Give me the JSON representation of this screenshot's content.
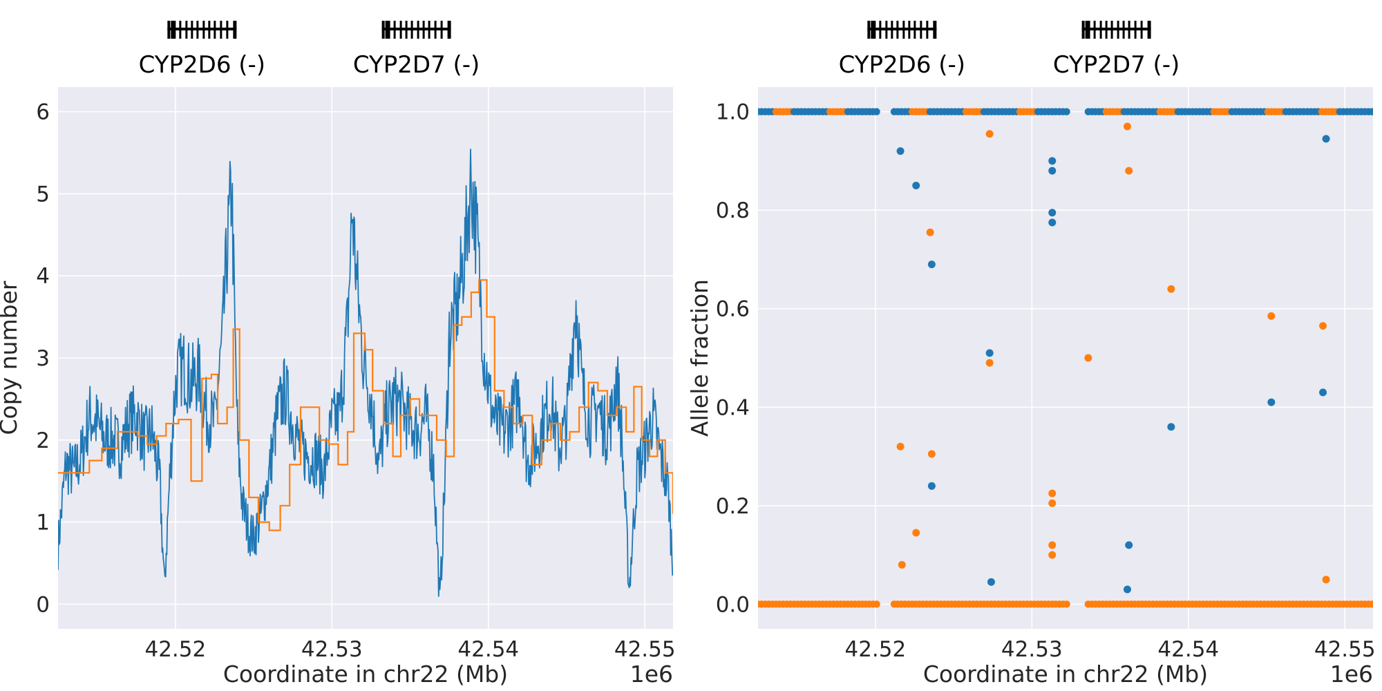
{
  "chart_data": [
    {
      "type": "line",
      "xlabel": "Coordinate in chr22 (Mb)",
      "ylabel": "Copy number",
      "offset_text": "1e6",
      "xlim": [
        42512500,
        42551800
      ],
      "ylim": [
        -0.3,
        6.3
      ],
      "x_ticks": [
        42520000,
        42530000,
        42540000,
        42550000
      ],
      "x_tick_labels": [
        "42.52",
        "42.53",
        "42.54",
        "42.55"
      ],
      "y_ticks": [
        0,
        1,
        2,
        3,
        4,
        5,
        6
      ],
      "y_tick_labels": [
        "0",
        "1",
        "2",
        "3",
        "4",
        "5",
        "6"
      ],
      "grid": true,
      "genes": [
        {
          "label": "CYP2D6 (-)",
          "center": 42521700
        },
        {
          "label": "CYP2D7 (-)",
          "center": 42535400
        }
      ],
      "series": [
        {
          "color": "#1f77b4",
          "x": [
            42512500,
            42513000,
            42513500,
            42514000,
            42514500,
            42515000,
            42515500,
            42516000,
            42516500,
            42517000,
            42517500,
            42518000,
            42518500,
            42519000,
            42519300,
            42519600,
            42519900,
            42520100,
            42520500,
            42521000,
            42521500,
            42522000,
            42522500,
            42523000,
            42523300,
            42523600,
            42523800,
            42524000,
            42524300,
            42524700,
            42525000,
            42525500,
            42526000,
            42526500,
            42527000,
            42527500,
            42528000,
            42528500,
            42529000,
            42529500,
            42530000,
            42530500,
            42531000,
            42531300,
            42531600,
            42532000,
            42532500,
            42533000,
            42533500,
            42534000,
            42534500,
            42535000,
            42535500,
            42536000,
            42536500,
            42536900,
            42537200,
            42537500,
            42538000,
            42538500,
            42538900,
            42539300,
            42539700,
            42540100,
            42540500,
            42541000,
            42541500,
            42542000,
            42542500,
            42543000,
            42543500,
            42544000,
            42544500,
            42545000,
            42545300,
            42545600,
            42546000,
            42546500,
            42547000,
            42547500,
            42547900,
            42548200,
            42548500,
            42549000,
            42549500,
            42550000,
            42550500,
            42551000,
            42551500,
            42551800
          ],
          "values": [
            0.7,
            1.7,
            1.6,
            1.8,
            2.3,
            2.2,
            2.0,
            2.0,
            1.9,
            2.2,
            2.3,
            2.0,
            2.1,
            1.5,
            0.2,
            1.4,
            2.4,
            2.8,
            2.9,
            2.7,
            2.8,
            2.3,
            2.2,
            3.2,
            4.3,
            5.1,
            3.3,
            1.9,
            1.2,
            0.9,
            0.8,
            1.1,
            1.6,
            2.3,
            2.6,
            2.2,
            1.9,
            1.8,
            1.8,
            1.6,
            2.2,
            2.3,
            3.4,
            4.8,
            3.9,
            3.0,
            2.5,
            1.7,
            2.3,
            2.5,
            2.4,
            2.2,
            2.1,
            2.3,
            1.7,
            0.0,
            1.4,
            3.3,
            3.6,
            4.3,
            5.2,
            4.4,
            3.1,
            2.5,
            2.2,
            2.1,
            2.3,
            2.6,
            1.7,
            1.9,
            2.2,
            2.5,
            1.9,
            2.2,
            3.0,
            3.7,
            2.6,
            2.2,
            2.4,
            2.1,
            2.3,
            2.8,
            2.1,
            0.2,
            1.6,
            1.9,
            2.3,
            1.8,
            1.4,
            0.4
          ]
        },
        {
          "color": "#ff7f0e",
          "x": [
            42512500,
            42513500,
            42514500,
            42515300,
            42516300,
            42517000,
            42517600,
            42518200,
            42518800,
            42519400,
            42520200,
            42521000,
            42521700,
            42522300,
            42522700,
            42523300,
            42523700,
            42524100,
            42524700,
            42525300,
            42526000,
            42526700,
            42527300,
            42528000,
            42528600,
            42529200,
            42529800,
            42530400,
            42531000,
            42531400,
            42532100,
            42532600,
            42533300,
            42533900,
            42534400,
            42535000,
            42535600,
            42536200,
            42536700,
            42537300,
            42537800,
            42538300,
            42538900,
            42539400,
            42539900,
            42540400,
            42541000,
            42541600,
            42542200,
            42542800,
            42543400,
            42544000,
            42544600,
            42545200,
            42545800,
            42546400,
            42547000,
            42547600,
            42548200,
            42548800,
            42549300,
            42549800,
            42550300,
            42550800,
            42551300,
            42551800
          ],
          "values": [
            1.6,
            1.6,
            1.75,
            1.9,
            2.1,
            2.1,
            2.05,
            1.95,
            2.05,
            2.2,
            2.25,
            1.5,
            2.75,
            2.8,
            2.2,
            2.4,
            3.35,
            2.0,
            1.3,
            1.0,
            0.9,
            1.2,
            1.7,
            2.4,
            2.4,
            2.0,
            1.95,
            1.7,
            2.1,
            3.3,
            3.1,
            2.6,
            2.2,
            1.8,
            2.3,
            2.5,
            2.3,
            2.3,
            2.0,
            1.8,
            3.4,
            3.5,
            3.8,
            3.95,
            3.5,
            2.6,
            2.4,
            2.2,
            2.3,
            1.7,
            2.0,
            2.2,
            2.0,
            2.1,
            2.4,
            2.7,
            2.6,
            2.3,
            2.4,
            2.1,
            2.65,
            2.0,
            1.8,
            2.0,
            1.6,
            1.1
          ]
        }
      ]
    },
    {
      "type": "scatter",
      "xlabel": "Coordinate in chr22 (Mb)",
      "ylabel": "Allele fraction",
      "offset_text": "1e6",
      "xlim": [
        42512500,
        42551800
      ],
      "ylim": [
        -0.05,
        1.05
      ],
      "x_ticks": [
        42520000,
        42530000,
        42540000,
        42550000
      ],
      "x_tick_labels": [
        "42.52",
        "42.53",
        "42.54",
        "42.55"
      ],
      "y_ticks": [
        0.0,
        0.2,
        0.4,
        0.6,
        0.8,
        1.0
      ],
      "y_tick_labels": [
        "0.0",
        "0.2",
        "0.4",
        "0.6",
        "0.8",
        "1.0"
      ],
      "grid": true,
      "genes": [
        {
          "label": "CYP2D6 (-)",
          "center": 42521700
        },
        {
          "label": "CYP2D7 (-)",
          "center": 42535400
        }
      ],
      "series": [
        {
          "color": "#1f77b4",
          "x": [
            42521600,
            42522600,
            42523600,
            42523600,
            42527300,
            42527400,
            42531300,
            42531300,
            42531300,
            42531300,
            42536100,
            42536200,
            42538900,
            42545300,
            42548600,
            42548800
          ],
          "y": [
            0.92,
            0.85,
            0.69,
            0.24,
            0.51,
            0.045,
            0.9,
            0.88,
            0.795,
            0.775,
            0.03,
            0.12,
            0.36,
            0.41,
            0.43,
            0.945
          ]
        },
        {
          "color": "#ff7f0e",
          "x": [
            42521600,
            42521700,
            42522600,
            42523500,
            42523600,
            42527300,
            42527300,
            42531300,
            42531300,
            42531300,
            42531300,
            42533600,
            42536100,
            42536200,
            42538900,
            42545300,
            42548600,
            42548800
          ],
          "y": [
            0.32,
            0.08,
            0.145,
            0.755,
            0.305,
            0.955,
            0.49,
            0.225,
            0.205,
            0.12,
            0.1,
            0.5,
            0.97,
            0.88,
            0.64,
            0.585,
            0.565,
            0.05
          ]
        }
      ],
      "bands": [
        {
          "y": 1.0,
          "ranges": [
            [
              42512500,
              42520100
            ],
            [
              42521200,
              42532300
            ],
            [
              42533600,
              42551800
            ]
          ]
        },
        {
          "y": 0.0,
          "ranges": [
            [
              42512500,
              42520100
            ],
            [
              42521200,
              42532300
            ],
            [
              42533600,
              42551800
            ]
          ]
        }
      ]
    }
  ]
}
